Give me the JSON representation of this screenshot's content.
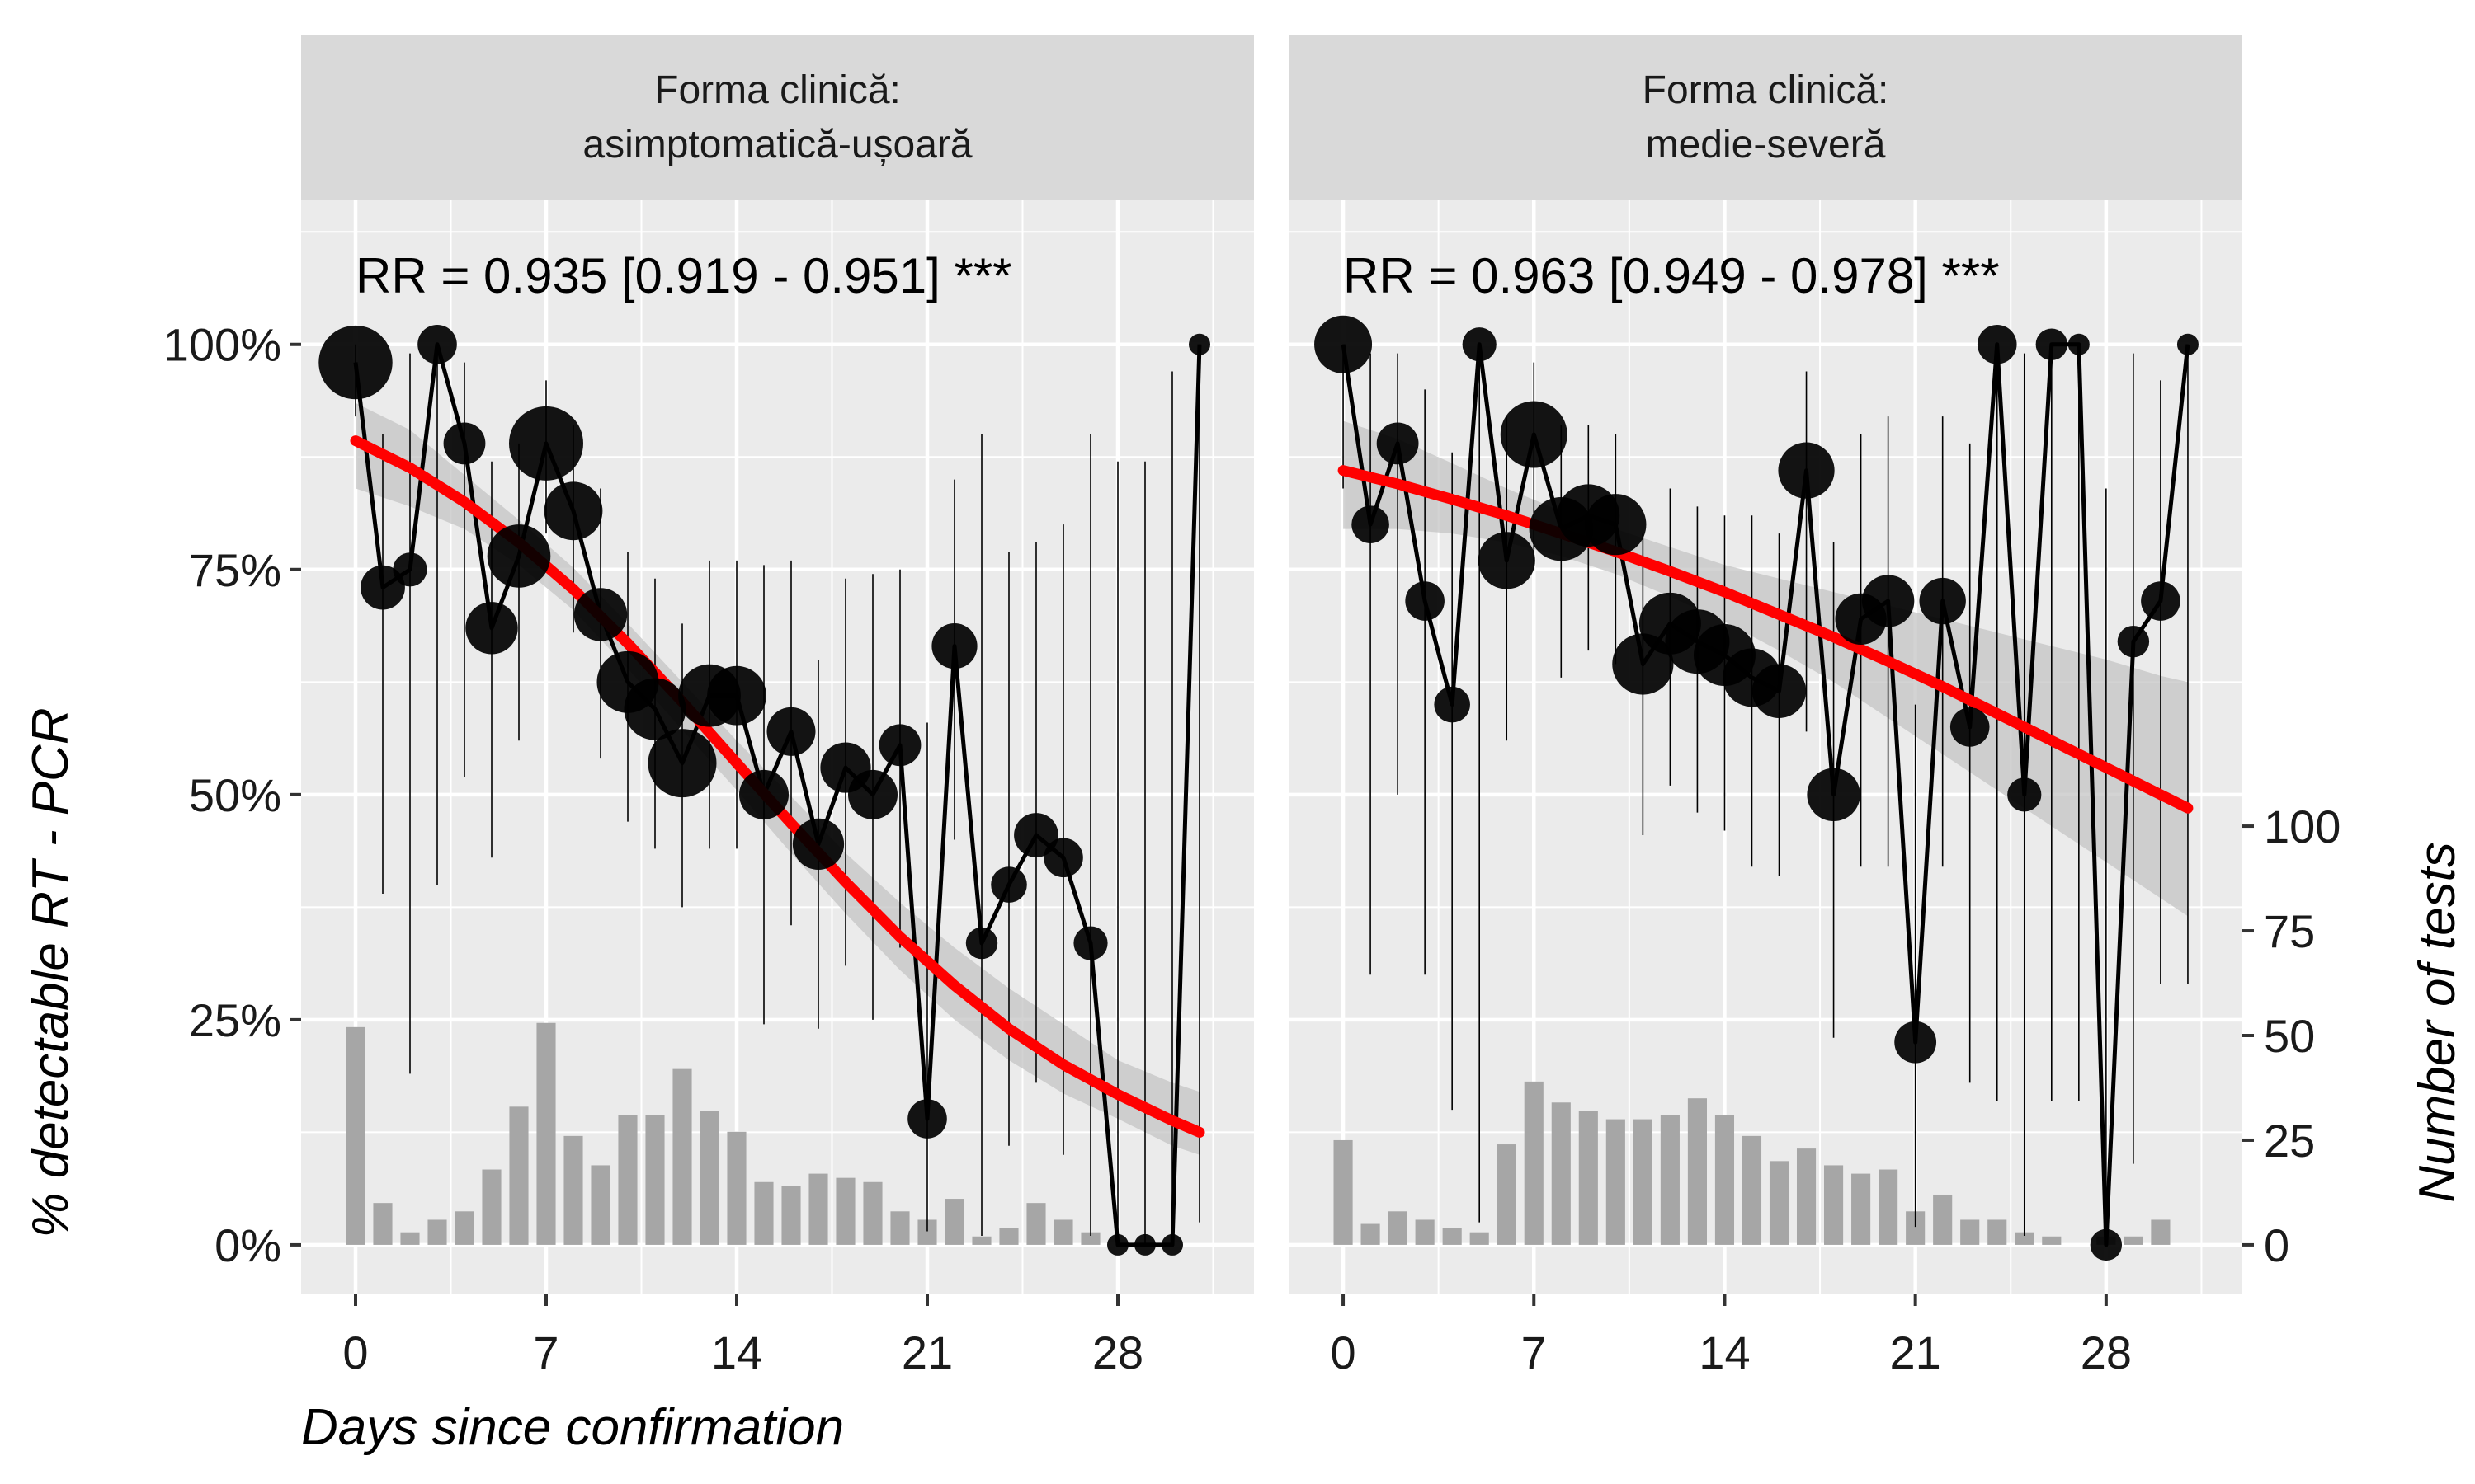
{
  "chart_data": {
    "type": "line",
    "xlabel": "Days since confirmation",
    "ylabel": "% detectable RT - PCR",
    "y2label": "Number of tests",
    "xlim": [
      -2,
      33
    ],
    "ylim": [
      -0.055,
      1.16
    ],
    "x_ticks": [
      0,
      7,
      14,
      21,
      28
    ],
    "x_tick_labels": [
      "0",
      "7",
      "14",
      "21",
      "28"
    ],
    "y_ticks": [
      0,
      0.25,
      0.5,
      0.75,
      1.0
    ],
    "y_tick_labels": [
      "0%",
      "25%",
      "50%",
      "75%",
      "100%"
    ],
    "y2_ticks": [
      0,
      25,
      50,
      75,
      100
    ],
    "y2_tick_labels": [
      "0",
      "25",
      "50",
      "75",
      "100"
    ],
    "y2_range": [
      0,
      0.465
    ],
    "grid": true,
    "colors": {
      "panel_bg": "#ebebeb",
      "strip_bg": "#d9d9d9",
      "grid": "#ffffff",
      "line": "#000000",
      "trend": "#ff0000",
      "band": "#c4c4c4",
      "bars": "#a6a6a6"
    },
    "panels": [
      {
        "strip_lines": [
          "Forma clinică:",
          "asimptomatică-ușoară"
        ],
        "annotation": "RR = 0.935 [0.919 - 0.951] ***",
        "x": [
          0,
          1,
          2,
          3,
          4,
          5,
          6,
          7,
          8,
          9,
          10,
          11,
          12,
          13,
          14,
          15,
          16,
          17,
          18,
          19,
          20,
          21,
          22,
          23,
          24,
          25,
          26,
          27,
          28,
          29,
          30,
          31
        ],
        "pct": [
          0.98,
          0.73,
          0.75,
          1.0,
          0.89,
          0.685,
          0.765,
          0.89,
          0.815,
          0.7,
          0.625,
          0.595,
          0.535,
          0.61,
          0.61,
          0.5,
          0.57,
          0.445,
          0.53,
          0.5,
          0.555,
          0.14,
          0.665,
          0.335,
          0.4,
          0.455,
          0.43,
          0.335,
          0.0,
          0.0,
          0.0,
          1.0
        ],
        "ci_low": [
          0.92,
          0.39,
          0.19,
          0.4,
          0.52,
          0.43,
          0.56,
          0.79,
          0.68,
          0.54,
          0.47,
          0.44,
          0.375,
          0.44,
          0.44,
          0.245,
          0.355,
          0.24,
          0.31,
          0.25,
          0.33,
          0.015,
          0.45,
          0.01,
          0.11,
          0.18,
          0.1,
          0.01,
          0.0,
          0.0,
          0.0,
          0.025
        ],
        "ci_high": [
          1.0,
          0.9,
          0.99,
          1.0,
          0.98,
          0.87,
          0.89,
          0.96,
          0.91,
          0.84,
          0.77,
          0.74,
          0.69,
          0.76,
          0.76,
          0.755,
          0.76,
          0.65,
          0.74,
          0.745,
          0.75,
          0.58,
          0.85,
          0.9,
          0.77,
          0.78,
          0.8,
          0.9,
          0.87,
          0.87,
          0.97,
          1.0
        ],
        "n_tests": [
          52,
          10,
          3,
          6,
          8,
          18,
          33,
          53,
          26,
          19,
          31,
          31,
          42,
          32,
          27,
          15,
          14,
          17,
          16,
          15,
          8,
          6,
          11,
          2,
          4,
          10,
          6,
          3,
          0,
          0,
          0,
          0
        ],
        "trend_x": [
          0,
          2,
          4,
          6,
          8,
          10,
          12,
          14,
          16,
          18,
          20,
          22,
          24,
          26,
          28,
          30,
          31
        ],
        "trend_y": [
          0.893,
          0.863,
          0.825,
          0.78,
          0.728,
          0.668,
          0.603,
          0.535,
          0.468,
          0.403,
          0.342,
          0.288,
          0.24,
          0.2,
          0.167,
          0.138,
          0.125
        ],
        "band_low": [
          0.84,
          0.82,
          0.795,
          0.755,
          0.705,
          0.64,
          0.572,
          0.505,
          0.435,
          0.368,
          0.305,
          0.25,
          0.205,
          0.168,
          0.14,
          0.11,
          0.1
        ],
        "band_high": [
          0.935,
          0.905,
          0.855,
          0.805,
          0.752,
          0.69,
          0.625,
          0.56,
          0.498,
          0.435,
          0.38,
          0.33,
          0.285,
          0.245,
          0.205,
          0.18,
          0.17
        ]
      },
      {
        "strip_lines": [
          "Forma clinică:",
          "medie-severă"
        ],
        "annotation": "RR = 0.963 [0.949 - 0.978] ***",
        "x": [
          0,
          1,
          2,
          3,
          4,
          5,
          6,
          7,
          8,
          9,
          10,
          11,
          12,
          13,
          14,
          15,
          16,
          17,
          18,
          19,
          20,
          21,
          22,
          23,
          24,
          25,
          26,
          27,
          28,
          29,
          30,
          31
        ],
        "pct": [
          1.0,
          0.8,
          0.89,
          0.715,
          0.6,
          1.0,
          0.76,
          0.9,
          0.795,
          0.81,
          0.8,
          0.645,
          0.69,
          0.67,
          0.655,
          0.63,
          0.615,
          0.86,
          0.5,
          0.695,
          0.715,
          0.225,
          0.715,
          0.575,
          1.0,
          0.5,
          1.0,
          1.0,
          0.0,
          0.67,
          0.715,
          1.0
        ],
        "ci_low": [
          0.84,
          0.3,
          0.5,
          0.3,
          0.15,
          0.025,
          0.56,
          0.75,
          0.63,
          0.66,
          0.645,
          0.455,
          0.51,
          0.48,
          0.46,
          0.42,
          0.41,
          0.57,
          0.23,
          0.42,
          0.42,
          0.02,
          0.42,
          0.18,
          0.16,
          0.01,
          0.16,
          0.16,
          0.0,
          0.09,
          0.29,
          0.29
        ],
        "ci_high": [
          1.0,
          0.99,
          0.99,
          0.95,
          0.88,
          1.0,
          0.92,
          0.98,
          0.91,
          0.91,
          0.9,
          0.79,
          0.84,
          0.82,
          0.81,
          0.81,
          0.79,
          0.97,
          0.78,
          0.9,
          0.92,
          0.6,
          0.92,
          0.89,
          1.0,
          0.99,
          1.0,
          1.0,
          0.84,
          0.99,
          0.96,
          1.0
        ],
        "n_tests": [
          25,
          5,
          8,
          6,
          4,
          3,
          24,
          39,
          34,
          32,
          30,
          30,
          31,
          35,
          31,
          26,
          20,
          23,
          19,
          17,
          18,
          8,
          12,
          6,
          6,
          3,
          2,
          0,
          2,
          2,
          6,
          0
        ],
        "trend_x": [
          0,
          2,
          4,
          6,
          8,
          10,
          12,
          14,
          16,
          18,
          20,
          22,
          24,
          26,
          28,
          30,
          31
        ],
        "trend_y": [
          0.86,
          0.845,
          0.828,
          0.81,
          0.79,
          0.77,
          0.748,
          0.725,
          0.7,
          0.675,
          0.648,
          0.62,
          0.59,
          0.56,
          0.53,
          0.5,
          0.485
        ],
        "band_low": [
          0.795,
          0.795,
          0.79,
          0.78,
          0.765,
          0.745,
          0.72,
          0.692,
          0.66,
          0.625,
          0.585,
          0.545,
          0.505,
          0.465,
          0.425,
          0.385,
          0.365
        ],
        "band_high": [
          0.915,
          0.895,
          0.868,
          0.84,
          0.815,
          0.795,
          0.775,
          0.755,
          0.74,
          0.725,
          0.71,
          0.695,
          0.68,
          0.665,
          0.65,
          0.632,
          0.625
        ]
      }
    ]
  }
}
